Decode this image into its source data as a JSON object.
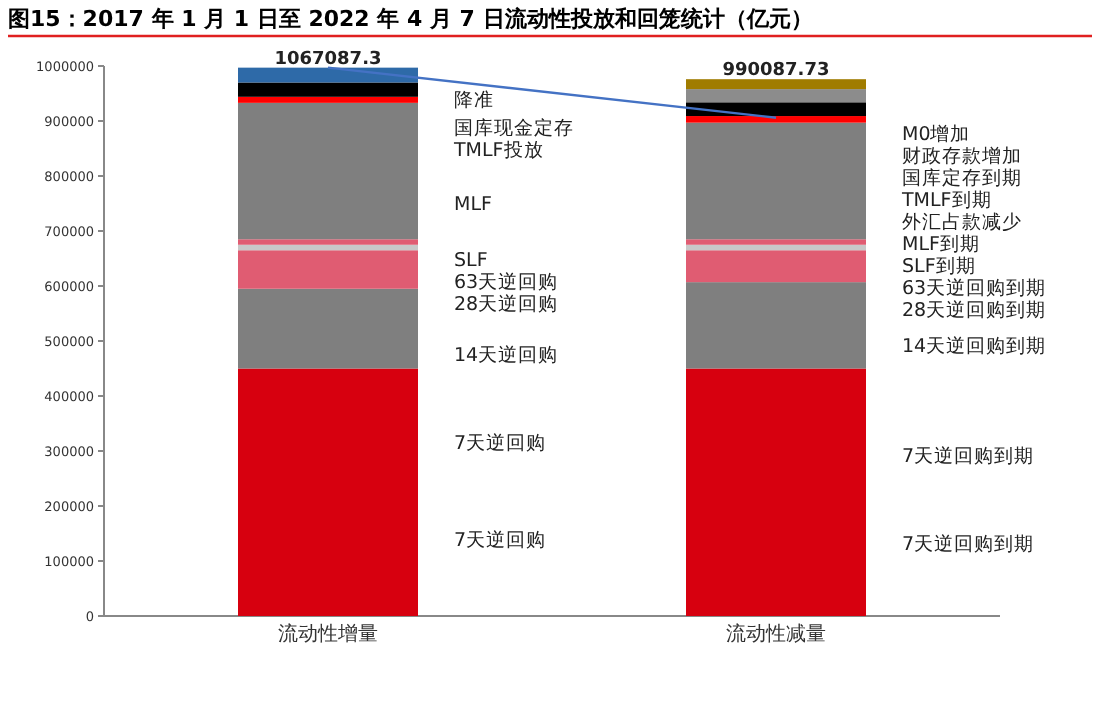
{
  "chart_data": {
    "type": "bar",
    "stacked": true,
    "title": "图15：2017 年 1 月 1 日至 2022 年 4 月 7 日流动性投放和回笼统计（亿元）",
    "categories": [
      "流动性增量",
      "流动性减量"
    ],
    "ylim": [
      0,
      1000000
    ],
    "yticks": [
      0,
      100000,
      200000,
      300000,
      400000,
      500000,
      600000,
      700000,
      800000,
      900000,
      1000000
    ],
    "series": [
      {
        "color": "#d7000f",
        "values": [
          450000,
          450000
        ]
      },
      {
        "color": "#7f7f7f",
        "values": [
          145000,
          157000
        ]
      },
      {
        "color": "#e05c72",
        "values": [
          70000,
          58000
        ]
      },
      {
        "color": "#c8c8c8",
        "values": [
          10000,
          10000
        ]
      },
      {
        "color": "#e05c72",
        "values": [
          10000,
          10000
        ]
      },
      {
        "color": "#7f7f7f",
        "values": [
          248000,
          212000
        ]
      },
      {
        "color": "#ff0000",
        "values": [
          11000,
          12000
        ]
      },
      {
        "color": "#000000",
        "values": [
          26000,
          25000
        ]
      },
      {
        "color": "#2e6aa8",
        "values": [
          27000,
          null
        ]
      },
      {
        "color": "#8c8c8c",
        "values": [
          null,
          24000
        ]
      },
      {
        "color": "#a07c00",
        "values": [
          null,
          18000
        ]
      },
      {
        "type": "line",
        "color": "#4472c4",
        "values": [
          997000,
          906000
        ]
      }
    ],
    "annotations": [
      "1067087.3",
      "990087.73",
      "降准",
      "国库现金定存",
      "TMLF投放",
      "MLF",
      "SLF",
      "63天逆回购",
      "28天逆回购",
      "14天逆回购",
      "7天逆回购",
      "7天逆回购",
      "M0增加",
      "财政存款增加",
      "国库定存到期",
      "TMLF到期",
      "外汇占款减少",
      "MLF到期",
      "SLF到期",
      "63天逆回购到期",
      "28天逆回购到期",
      "14天逆回购到期",
      "7天逆回购到期",
      "7天逆回购到期"
    ]
  }
}
